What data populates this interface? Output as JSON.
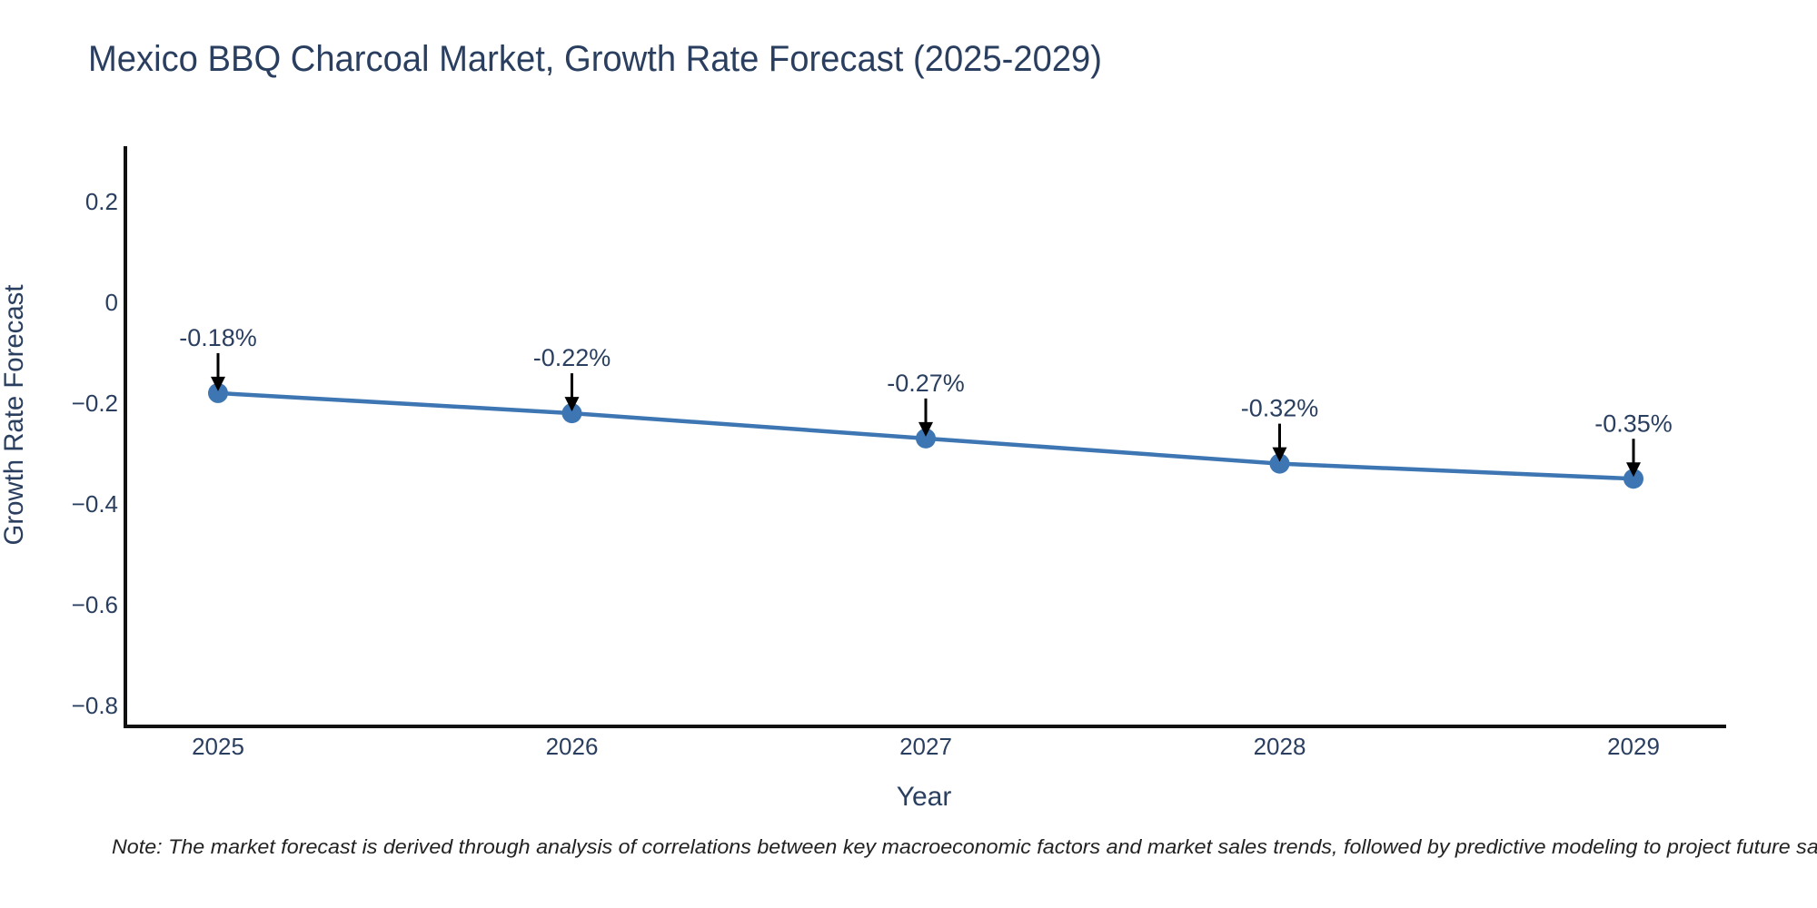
{
  "page": {
    "background": "#ffffff"
  },
  "title": "Mexico BBQ Charcoal Market, Growth Rate Forecast (2025-2029)",
  "note": "Note: The market forecast is derived through analysis of correlations between key macroeconomic factors and market sales trends, followed by predictive modeling to project future sales.",
  "chart_data": {
    "type": "line",
    "title": "Mexico BBQ Charcoal Market, Growth Rate Forecast (2025-2029)",
    "xlabel": "Year",
    "ylabel": "Growth Rate Forecast",
    "categories": [
      "2025",
      "2026",
      "2027",
      "2028",
      "2029"
    ],
    "series": [
      {
        "name": "Growth Rate Forecast",
        "values": [
          -0.18,
          -0.22,
          -0.27,
          -0.32,
          -0.35
        ]
      }
    ],
    "annotations": [
      "-0.18%",
      "-0.22%",
      "-0.27%",
      "-0.32%",
      "-0.35%"
    ],
    "unit": "%",
    "yticks": [
      {
        "label": "0.2",
        "v": 0.2
      },
      {
        "label": "0",
        "v": 0
      },
      {
        "label": "−0.2",
        "v": -0.2
      },
      {
        "label": "−0.4",
        "v": -0.4
      },
      {
        "label": "−0.6",
        "v": -0.6
      },
      {
        "label": "−0.8",
        "v": -0.8
      }
    ],
    "ylim": [
      -0.84,
      0.31
    ],
    "grid": false,
    "legend": false,
    "colors": {
      "line": "#3d76b3",
      "marker": "#3d76b3",
      "arrow": "#000000",
      "text": "#2a3f5f",
      "axis": "#111111",
      "note": "#222222"
    }
  }
}
